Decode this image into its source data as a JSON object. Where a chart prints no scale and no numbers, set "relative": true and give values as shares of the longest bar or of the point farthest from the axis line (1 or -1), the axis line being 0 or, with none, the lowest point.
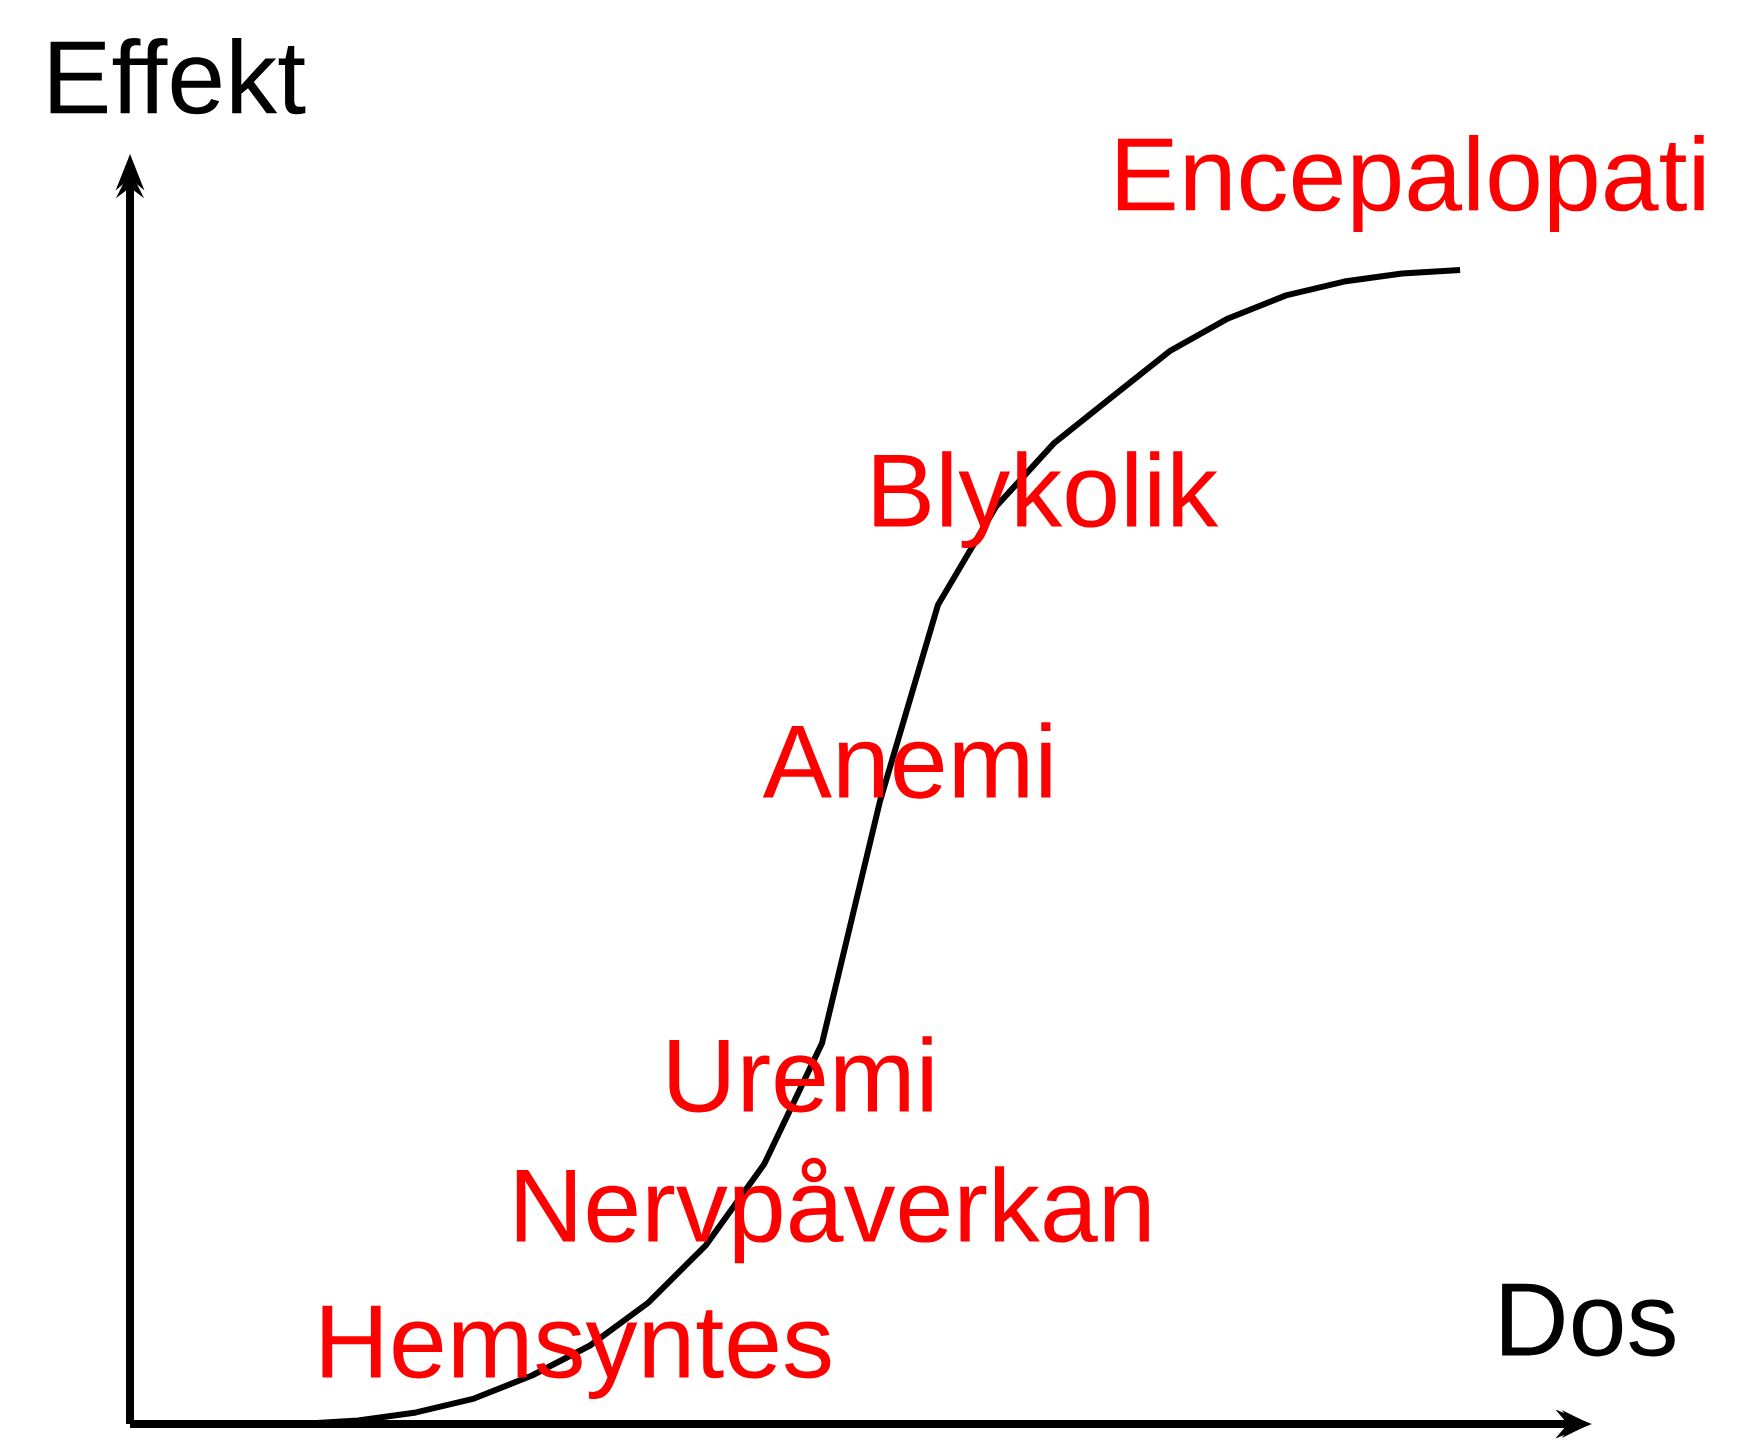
{
  "chart_data": {
    "type": "line",
    "relative": true,
    "xlabel": "Dos",
    "ylabel": "Effekt",
    "categories": [
      null,
      null,
      null,
      null,
      null,
      null,
      null,
      null,
      null,
      null,
      null,
      null,
      null,
      null,
      null,
      null,
      null,
      null,
      null,
      null,
      null
    ],
    "series": [
      {
        "color": "#000000",
        "values": [
          0,
          0.003,
          0.01,
          0.022,
          0.042,
          0.068,
          0.105,
          0.155,
          0.225,
          0.33,
          0.54,
          0.71,
          0.795,
          0.85,
          0.89,
          0.93,
          0.958,
          0.978,
          0.99,
          0.997,
          1
        ]
      }
    ],
    "annotations": [
      "Encepalopati",
      "Blykolik",
      "Anemi",
      "Uremi",
      "Nervpåverkan",
      "Hemsyntes"
    ]
  }
}
